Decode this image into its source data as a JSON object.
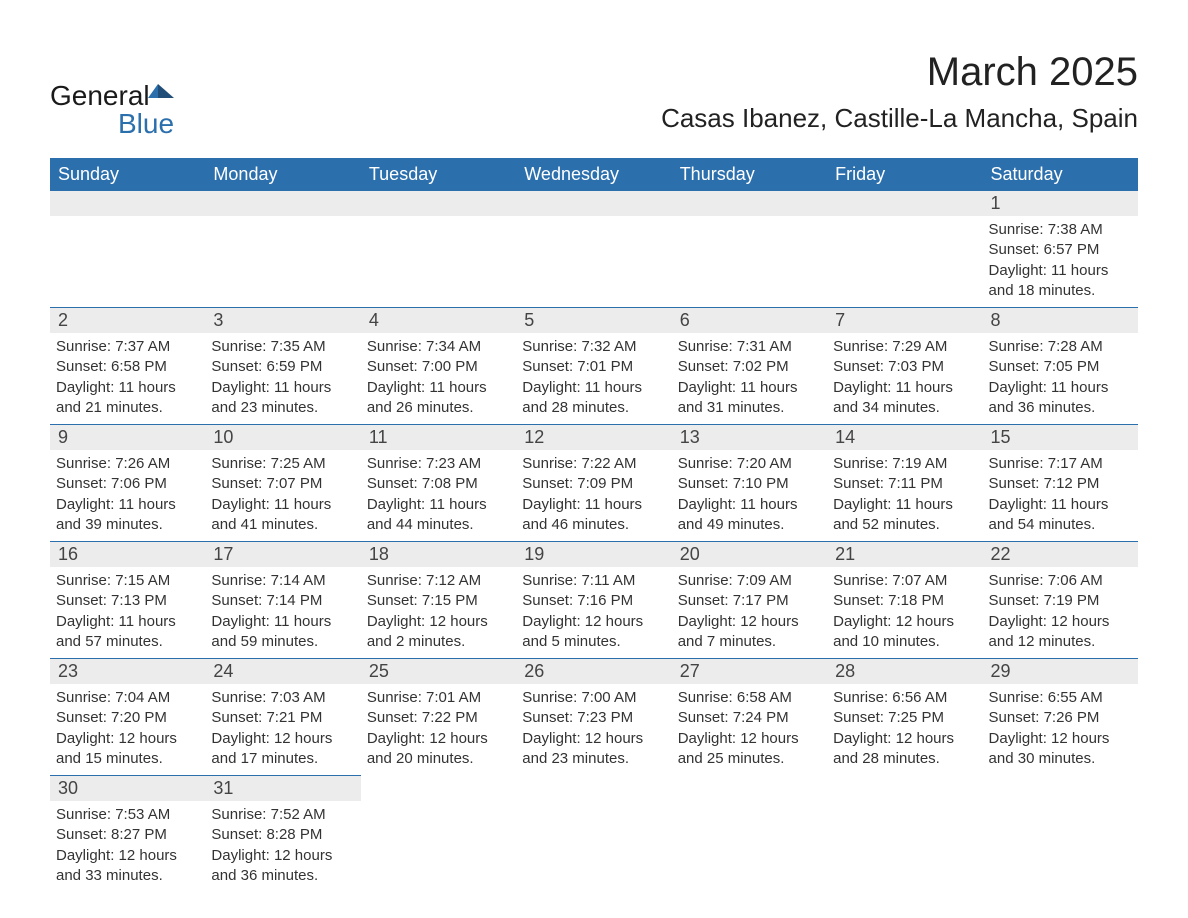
{
  "brand": {
    "word1": "General",
    "word2": "Blue"
  },
  "title": {
    "month": "March 2025",
    "location": "Casas Ibanez, Castille-La Mancha, Spain"
  },
  "colors": {
    "header_bg": "#2c6fad",
    "header_fg": "#ffffff",
    "daynum_bg": "#ececec",
    "grid_line": "#2c6fad",
    "text": "#333333",
    "background": "#ffffff"
  },
  "typography": {
    "title_fontsize_pt": 30,
    "subtitle_fontsize_pt": 20,
    "header_fontsize_pt": 14,
    "daynum_fontsize_pt": 14,
    "body_fontsize_pt": 11
  },
  "layout": {
    "columns": 7,
    "rows": 6,
    "aspect_ratio": "1188:918"
  },
  "day_headers": [
    "Sunday",
    "Monday",
    "Tuesday",
    "Wednesday",
    "Thursday",
    "Friday",
    "Saturday"
  ],
  "weeks": [
    [
      {
        "n": "",
        "sunrise": "",
        "sunset": "",
        "daylight": ""
      },
      {
        "n": "",
        "sunrise": "",
        "sunset": "",
        "daylight": ""
      },
      {
        "n": "",
        "sunrise": "",
        "sunset": "",
        "daylight": ""
      },
      {
        "n": "",
        "sunrise": "",
        "sunset": "",
        "daylight": ""
      },
      {
        "n": "",
        "sunrise": "",
        "sunset": "",
        "daylight": ""
      },
      {
        "n": "",
        "sunrise": "",
        "sunset": "",
        "daylight": ""
      },
      {
        "n": "1",
        "sunrise": "Sunrise: 7:38 AM",
        "sunset": "Sunset: 6:57 PM",
        "daylight": "Daylight: 11 hours and 18 minutes."
      }
    ],
    [
      {
        "n": "2",
        "sunrise": "Sunrise: 7:37 AM",
        "sunset": "Sunset: 6:58 PM",
        "daylight": "Daylight: 11 hours and 21 minutes."
      },
      {
        "n": "3",
        "sunrise": "Sunrise: 7:35 AM",
        "sunset": "Sunset: 6:59 PM",
        "daylight": "Daylight: 11 hours and 23 minutes."
      },
      {
        "n": "4",
        "sunrise": "Sunrise: 7:34 AM",
        "sunset": "Sunset: 7:00 PM",
        "daylight": "Daylight: 11 hours and 26 minutes."
      },
      {
        "n": "5",
        "sunrise": "Sunrise: 7:32 AM",
        "sunset": "Sunset: 7:01 PM",
        "daylight": "Daylight: 11 hours and 28 minutes."
      },
      {
        "n": "6",
        "sunrise": "Sunrise: 7:31 AM",
        "sunset": "Sunset: 7:02 PM",
        "daylight": "Daylight: 11 hours and 31 minutes."
      },
      {
        "n": "7",
        "sunrise": "Sunrise: 7:29 AM",
        "sunset": "Sunset: 7:03 PM",
        "daylight": "Daylight: 11 hours and 34 minutes."
      },
      {
        "n": "8",
        "sunrise": "Sunrise: 7:28 AM",
        "sunset": "Sunset: 7:05 PM",
        "daylight": "Daylight: 11 hours and 36 minutes."
      }
    ],
    [
      {
        "n": "9",
        "sunrise": "Sunrise: 7:26 AM",
        "sunset": "Sunset: 7:06 PM",
        "daylight": "Daylight: 11 hours and 39 minutes."
      },
      {
        "n": "10",
        "sunrise": "Sunrise: 7:25 AM",
        "sunset": "Sunset: 7:07 PM",
        "daylight": "Daylight: 11 hours and 41 minutes."
      },
      {
        "n": "11",
        "sunrise": "Sunrise: 7:23 AM",
        "sunset": "Sunset: 7:08 PM",
        "daylight": "Daylight: 11 hours and 44 minutes."
      },
      {
        "n": "12",
        "sunrise": "Sunrise: 7:22 AM",
        "sunset": "Sunset: 7:09 PM",
        "daylight": "Daylight: 11 hours and 46 minutes."
      },
      {
        "n": "13",
        "sunrise": "Sunrise: 7:20 AM",
        "sunset": "Sunset: 7:10 PM",
        "daylight": "Daylight: 11 hours and 49 minutes."
      },
      {
        "n": "14",
        "sunrise": "Sunrise: 7:19 AM",
        "sunset": "Sunset: 7:11 PM",
        "daylight": "Daylight: 11 hours and 52 minutes."
      },
      {
        "n": "15",
        "sunrise": "Sunrise: 7:17 AM",
        "sunset": "Sunset: 7:12 PM",
        "daylight": "Daylight: 11 hours and 54 minutes."
      }
    ],
    [
      {
        "n": "16",
        "sunrise": "Sunrise: 7:15 AM",
        "sunset": "Sunset: 7:13 PM",
        "daylight": "Daylight: 11 hours and 57 minutes."
      },
      {
        "n": "17",
        "sunrise": "Sunrise: 7:14 AM",
        "sunset": "Sunset: 7:14 PM",
        "daylight": "Daylight: 11 hours and 59 minutes."
      },
      {
        "n": "18",
        "sunrise": "Sunrise: 7:12 AM",
        "sunset": "Sunset: 7:15 PM",
        "daylight": "Daylight: 12 hours and 2 minutes."
      },
      {
        "n": "19",
        "sunrise": "Sunrise: 7:11 AM",
        "sunset": "Sunset: 7:16 PM",
        "daylight": "Daylight: 12 hours and 5 minutes."
      },
      {
        "n": "20",
        "sunrise": "Sunrise: 7:09 AM",
        "sunset": "Sunset: 7:17 PM",
        "daylight": "Daylight: 12 hours and 7 minutes."
      },
      {
        "n": "21",
        "sunrise": "Sunrise: 7:07 AM",
        "sunset": "Sunset: 7:18 PM",
        "daylight": "Daylight: 12 hours and 10 minutes."
      },
      {
        "n": "22",
        "sunrise": "Sunrise: 7:06 AM",
        "sunset": "Sunset: 7:19 PM",
        "daylight": "Daylight: 12 hours and 12 minutes."
      }
    ],
    [
      {
        "n": "23",
        "sunrise": "Sunrise: 7:04 AM",
        "sunset": "Sunset: 7:20 PM",
        "daylight": "Daylight: 12 hours and 15 minutes."
      },
      {
        "n": "24",
        "sunrise": "Sunrise: 7:03 AM",
        "sunset": "Sunset: 7:21 PM",
        "daylight": "Daylight: 12 hours and 17 minutes."
      },
      {
        "n": "25",
        "sunrise": "Sunrise: 7:01 AM",
        "sunset": "Sunset: 7:22 PM",
        "daylight": "Daylight: 12 hours and 20 minutes."
      },
      {
        "n": "26",
        "sunrise": "Sunrise: 7:00 AM",
        "sunset": "Sunset: 7:23 PM",
        "daylight": "Daylight: 12 hours and 23 minutes."
      },
      {
        "n": "27",
        "sunrise": "Sunrise: 6:58 AM",
        "sunset": "Sunset: 7:24 PM",
        "daylight": "Daylight: 12 hours and 25 minutes."
      },
      {
        "n": "28",
        "sunrise": "Sunrise: 6:56 AM",
        "sunset": "Sunset: 7:25 PM",
        "daylight": "Daylight: 12 hours and 28 minutes."
      },
      {
        "n": "29",
        "sunrise": "Sunrise: 6:55 AM",
        "sunset": "Sunset: 7:26 PM",
        "daylight": "Daylight: 12 hours and 30 minutes."
      }
    ],
    [
      {
        "n": "30",
        "sunrise": "Sunrise: 7:53 AM",
        "sunset": "Sunset: 8:27 PM",
        "daylight": "Daylight: 12 hours and 33 minutes."
      },
      {
        "n": "31",
        "sunrise": "Sunrise: 7:52 AM",
        "sunset": "Sunset: 8:28 PM",
        "daylight": "Daylight: 12 hours and 36 minutes."
      },
      {
        "n": "",
        "sunrise": "",
        "sunset": "",
        "daylight": ""
      },
      {
        "n": "",
        "sunrise": "",
        "sunset": "",
        "daylight": ""
      },
      {
        "n": "",
        "sunrise": "",
        "sunset": "",
        "daylight": ""
      },
      {
        "n": "",
        "sunrise": "",
        "sunset": "",
        "daylight": ""
      },
      {
        "n": "",
        "sunrise": "",
        "sunset": "",
        "daylight": ""
      }
    ]
  ]
}
